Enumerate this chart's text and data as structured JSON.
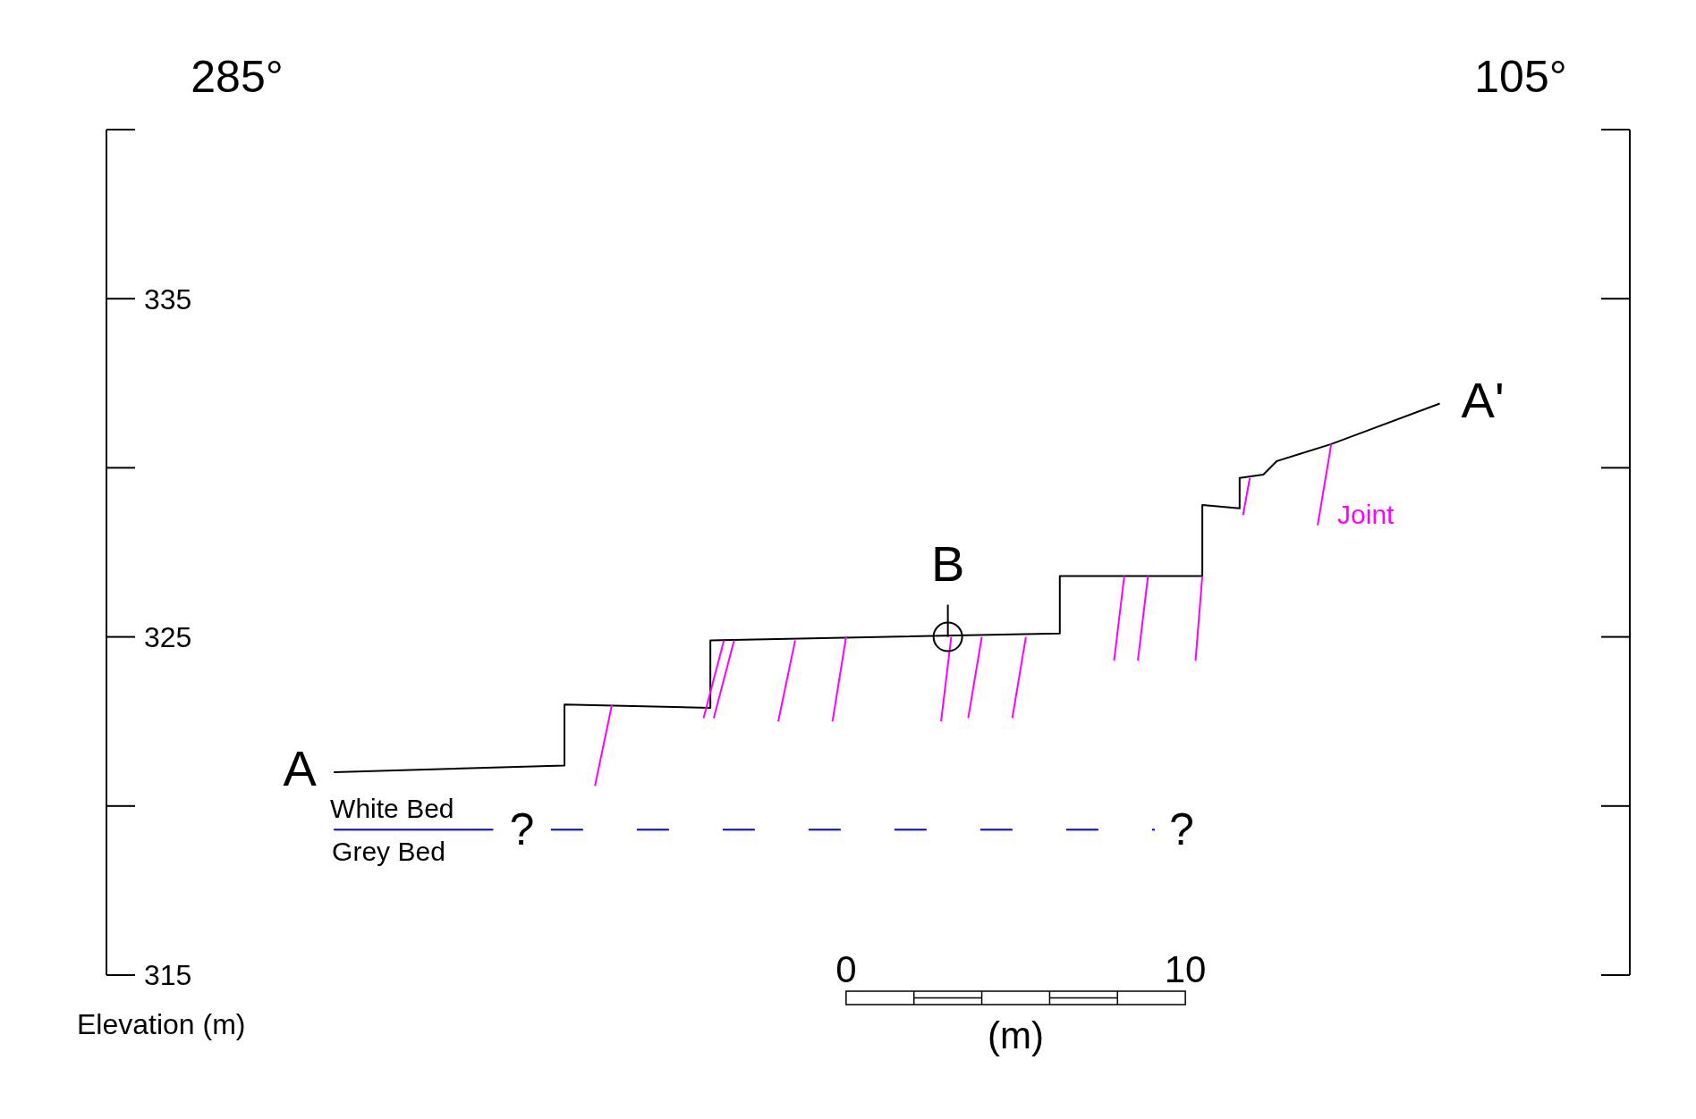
{
  "chart_data": {
    "type": "line",
    "xlabel": "(m)",
    "ylabel": "Elevation (m)",
    "xlim": [
      -21.8,
      23.1
    ],
    "xticks": [
      0,
      10
    ],
    "ylim": [
      315,
      340
    ],
    "yticks": [
      315,
      325,
      335
    ],
    "marker": "none",
    "series": [
      {
        "color": "#000000",
        "x": [
          -15.1,
          -8.3,
          -8.3,
          -4.0,
          -4.0,
          6.3,
          6.3,
          10.5,
          10.5,
          11.6,
          11.6,
          12.3,
          12.7,
          14.3,
          17.5
        ],
        "values": [
          321.0,
          321.2,
          323.0,
          322.9,
          324.9,
          325.1,
          326.8,
          326.8,
          328.9,
          328.8,
          329.7,
          329.8,
          330.2,
          330.7,
          331.9
        ]
      },
      {
        "color": "#0000ff",
        "x": [
          -15.1,
          -10.4
        ],
        "values": [
          319.3,
          319.3
        ]
      },
      {
        "color": "#0000ff",
        "line_style": "dashed",
        "x": [
          -8.7,
          9.1
        ],
        "values": [
          319.3,
          319.3
        ]
      },
      {
        "color": "#ff00ff",
        "x": [
          -6.9,
          -7.4
        ],
        "values": [
          323.0,
          320.6
        ]
      },
      {
        "color": "#ff00ff",
        "x": [
          -3.6,
          -4.2
        ],
        "values": [
          324.9,
          322.6
        ]
      },
      {
        "color": "#ff00ff",
        "x": [
          -3.3,
          -3.9
        ],
        "values": [
          324.9,
          322.6
        ]
      },
      {
        "color": "#ff00ff",
        "x": [
          -1.5,
          -2.0
        ],
        "values": [
          324.9,
          322.5
        ]
      },
      {
        "color": "#ff00ff",
        "x": [
          0.0,
          -0.4
        ],
        "values": [
          325.0,
          322.5
        ]
      },
      {
        "color": "#ff00ff",
        "x": [
          3.1,
          2.8
        ],
        "values": [
          325.0,
          322.5
        ]
      },
      {
        "color": "#ff00ff",
        "x": [
          4.0,
          3.6
        ],
        "values": [
          325.0,
          322.6
        ]
      },
      {
        "color": "#ff00ff",
        "x": [
          5.3,
          4.9
        ],
        "values": [
          325.0,
          322.6
        ]
      },
      {
        "color": "#ff00ff",
        "x": [
          8.2,
          7.9
        ],
        "values": [
          326.8,
          324.3
        ]
      },
      {
        "color": "#ff00ff",
        "x": [
          8.9,
          8.6
        ],
        "values": [
          326.8,
          324.3
        ]
      },
      {
        "color": "#ff00ff",
        "x": [
          10.5,
          10.3
        ],
        "values": [
          326.8,
          324.3
        ]
      },
      {
        "color": "#ff00ff",
        "x": [
          11.9,
          11.7
        ],
        "values": [
          329.7,
          328.6
        ]
      },
      {
        "name": "Joint",
        "color": "#ff00ff",
        "x": [
          14.3,
          13.9
        ],
        "values": [
          330.7,
          328.3
        ]
      },
      {
        "type": "scatter",
        "marker": "circle",
        "color": "#000000",
        "x": [
          3.0
        ],
        "values": [
          325.0
        ]
      }
    ],
    "annotations": [
      "285°",
      "105°",
      "A",
      "A'",
      "B",
      "White Bed",
      "Grey Bed",
      "?",
      "?"
    ]
  }
}
